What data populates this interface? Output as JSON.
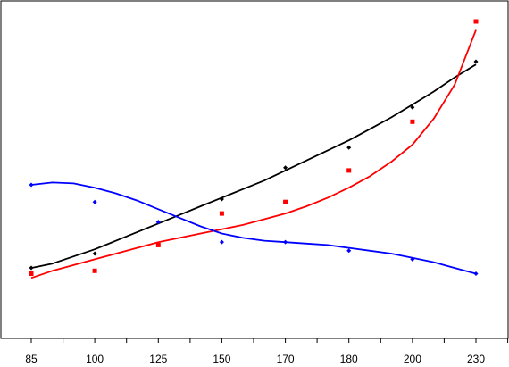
{
  "chart_data": {
    "type": "scatter",
    "title": "",
    "xlabel": "",
    "ylabel": "",
    "categories": [
      "85",
      "100",
      "125",
      "150",
      "170",
      "180",
      "200",
      "230"
    ],
    "grid": false,
    "legend": "none",
    "ylim": [
      0,
      100
    ],
    "series": [
      {
        "color": "#000000",
        "marker": "diamond",
        "points": [
          14,
          19,
          30,
          38,
          49,
          56,
          70,
          86
        ],
        "fit": [
          14,
          15.5,
          18,
          20.5,
          23.5,
          26.5,
          29.5,
          32.5,
          35.5,
          38.5,
          41.5,
          44.5,
          48,
          51.5,
          55,
          58.5,
          62.5,
          66.5,
          71,
          75.5,
          80.5,
          85
        ]
      },
      {
        "color": "#ff0000",
        "marker": "square",
        "points": [
          12,
          13,
          22,
          33,
          37,
          48,
          65,
          100
        ],
        "fit": [
          10.5,
          13,
          15,
          17,
          19,
          21,
          23,
          24.5,
          26,
          27.5,
          29,
          31,
          33,
          35.5,
          38.5,
          42,
          46,
          51,
          57,
          66,
          78,
          97
        ]
      },
      {
        "color": "#0000ff",
        "marker": "diamond",
        "points": [
          43,
          37,
          30,
          23,
          23,
          20,
          17,
          12
        ],
        "fit": [
          43,
          43.8,
          43.5,
          42,
          40,
          37.5,
          34.5,
          31.5,
          28.5,
          26,
          24.5,
          23.5,
          23,
          22.5,
          22,
          21,
          20,
          19,
          17.5,
          16,
          14,
          12
        ]
      }
    ]
  }
}
